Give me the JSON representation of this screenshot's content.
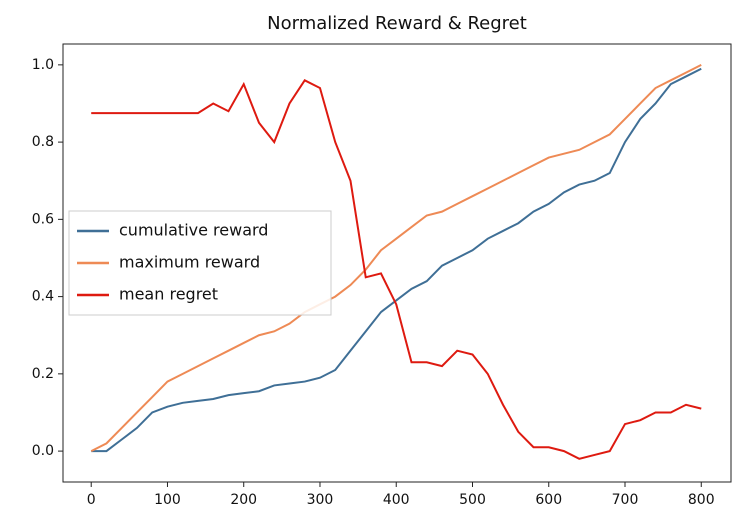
{
  "chart_data": {
    "type": "line",
    "title": "Normalized Reward & Regret",
    "x": [
      0,
      20,
      40,
      60,
      80,
      100,
      120,
      140,
      160,
      180,
      200,
      220,
      240,
      260,
      280,
      300,
      320,
      340,
      360,
      380,
      400,
      420,
      440,
      460,
      480,
      500,
      520,
      540,
      560,
      580,
      600,
      620,
      640,
      660,
      680,
      700,
      720,
      740,
      760,
      780,
      800
    ],
    "series": [
      {
        "name": "cumulative reward",
        "color": "#3f6f96",
        "values": [
          0,
          0.0,
          0.03,
          0.06,
          0.1,
          0.115,
          0.125,
          0.13,
          0.135,
          0.145,
          0.15,
          0.155,
          0.17,
          0.175,
          0.18,
          0.19,
          0.21,
          0.26,
          0.31,
          0.36,
          0.39,
          0.42,
          0.44,
          0.48,
          0.5,
          0.52,
          0.55,
          0.57,
          0.59,
          0.62,
          0.64,
          0.67,
          0.69,
          0.7,
          0.72,
          0.8,
          0.86,
          0.9,
          0.95,
          0.97,
          0.99
        ]
      },
      {
        "name": "maximum reward",
        "color": "#ee8a55",
        "values": [
          0,
          0.02,
          0.06,
          0.1,
          0.14,
          0.18,
          0.2,
          0.22,
          0.24,
          0.26,
          0.28,
          0.3,
          0.31,
          0.33,
          0.36,
          0.38,
          0.4,
          0.43,
          0.47,
          0.52,
          0.55,
          0.58,
          0.61,
          0.62,
          0.64,
          0.66,
          0.68,
          0.7,
          0.72,
          0.74,
          0.76,
          0.77,
          0.78,
          0.8,
          0.82,
          0.86,
          0.9,
          0.94,
          0.96,
          0.98,
          1.0
        ]
      },
      {
        "name": "mean regret",
        "color": "#de1a10",
        "values": [
          0.875,
          0.875,
          0.875,
          0.875,
          0.875,
          0.875,
          0.875,
          0.875,
          0.9,
          0.88,
          0.95,
          0.85,
          0.8,
          0.9,
          0.96,
          0.94,
          0.8,
          0.7,
          0.45,
          0.46,
          0.38,
          0.23,
          0.23,
          0.22,
          0.26,
          0.25,
          0.2,
          0.12,
          0.05,
          0.01,
          0.01,
          0.0,
          -0.02,
          -0.01,
          0.0,
          0.07,
          0.08,
          0.1,
          0.1,
          0.12,
          0.11
        ]
      }
    ],
    "xlim": [
      -37,
      839
    ],
    "ylim": [
      -0.08,
      1.054
    ],
    "xticks": [
      0,
      100,
      200,
      300,
      400,
      500,
      600,
      700,
      800
    ],
    "yticks": [
      {
        "value": 0,
        "label": "0.0"
      },
      {
        "value": 0.2,
        "label": "0.2"
      },
      {
        "value": 0.4,
        "label": "0.4"
      },
      {
        "value": 0.6,
        "label": "0.6"
      },
      {
        "value": 0.8,
        "label": "0.8"
      },
      {
        "value": 1,
        "label": "1.0"
      }
    ],
    "legend": "center left"
  }
}
